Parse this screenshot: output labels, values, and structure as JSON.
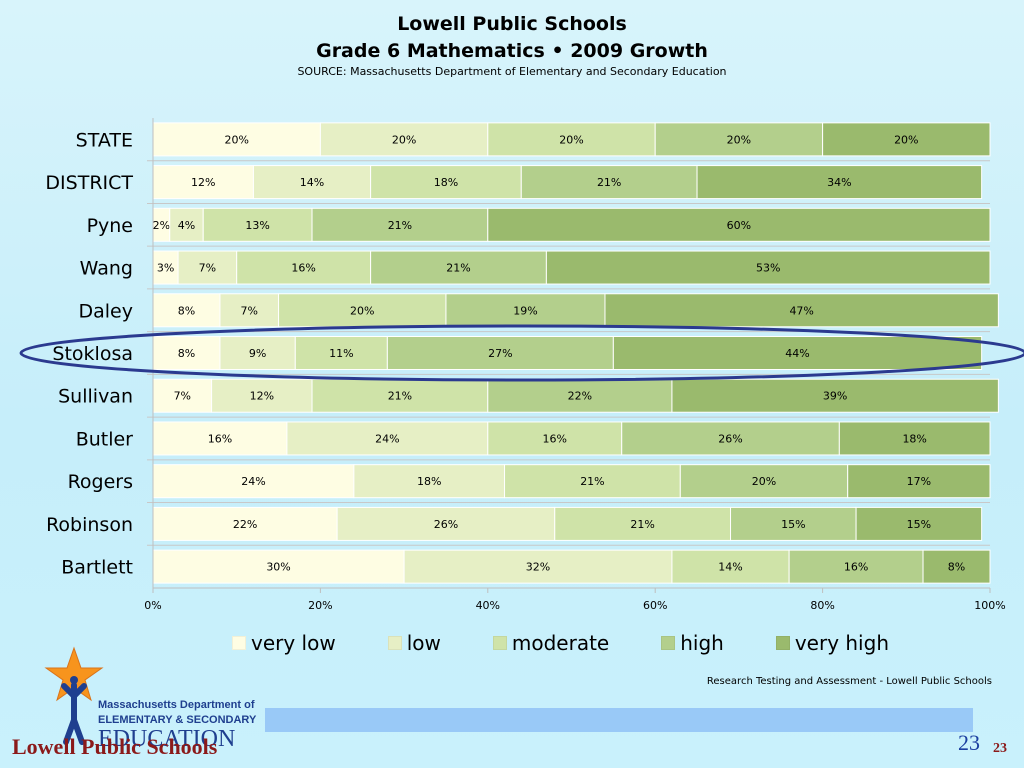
{
  "slide": {
    "title_line1": "Lowell Public Schools",
    "title_line2": "Grade 6 Mathematics • 2009 Growth",
    "source": "SOURCE: Massachusetts Department of Elementary and Secondary Education",
    "credit": "Research Testing and Assessment - Lowell Public Schools",
    "footer_name": "Lowell Public Schools",
    "page_number": "23",
    "page_number_small": "23",
    "logo": {
      "line1": "Massachusetts Department of",
      "line2": "ELEMENTARY & SECONDARY",
      "line3": "EDUCATION",
      "icon": "star-person-icon"
    }
  },
  "chart_data": {
    "type": "bar",
    "orientation": "horizontal",
    "stacked": "percent",
    "categories": [
      "STATE",
      "DISTRICT",
      "Pyne",
      "Wang",
      "Daley",
      "Stoklosa",
      "Sullivan",
      "Butler",
      "Rogers",
      "Robinson",
      "Bartlett"
    ],
    "series": [
      {
        "name": "very low",
        "color": "#fefde3",
        "values": [
          20,
          12,
          2,
          3,
          8,
          8,
          7,
          16,
          24,
          22,
          30
        ]
      },
      {
        "name": "low",
        "color": "#e6efc5",
        "values": [
          20,
          14,
          4,
          7,
          7,
          9,
          12,
          24,
          18,
          26,
          32
        ]
      },
      {
        "name": "moderate",
        "color": "#cfe3a8",
        "values": [
          20,
          18,
          13,
          16,
          20,
          11,
          21,
          16,
          21,
          21,
          14
        ]
      },
      {
        "name": "high",
        "color": "#b3cf8c",
        "values": [
          20,
          21,
          21,
          21,
          19,
          27,
          22,
          26,
          20,
          15,
          16
        ]
      },
      {
        "name": "very high",
        "color": "#9aba6d",
        "values": [
          20,
          34,
          60,
          53,
          47,
          44,
          39,
          18,
          17,
          15,
          8
        ]
      }
    ],
    "xlim": [
      0,
      100
    ],
    "x_ticks": [
      "0%",
      "20%",
      "40%",
      "60%",
      "80%",
      "100%"
    ],
    "legend_position": "bottom",
    "highlighted_category": "Stoklosa"
  }
}
